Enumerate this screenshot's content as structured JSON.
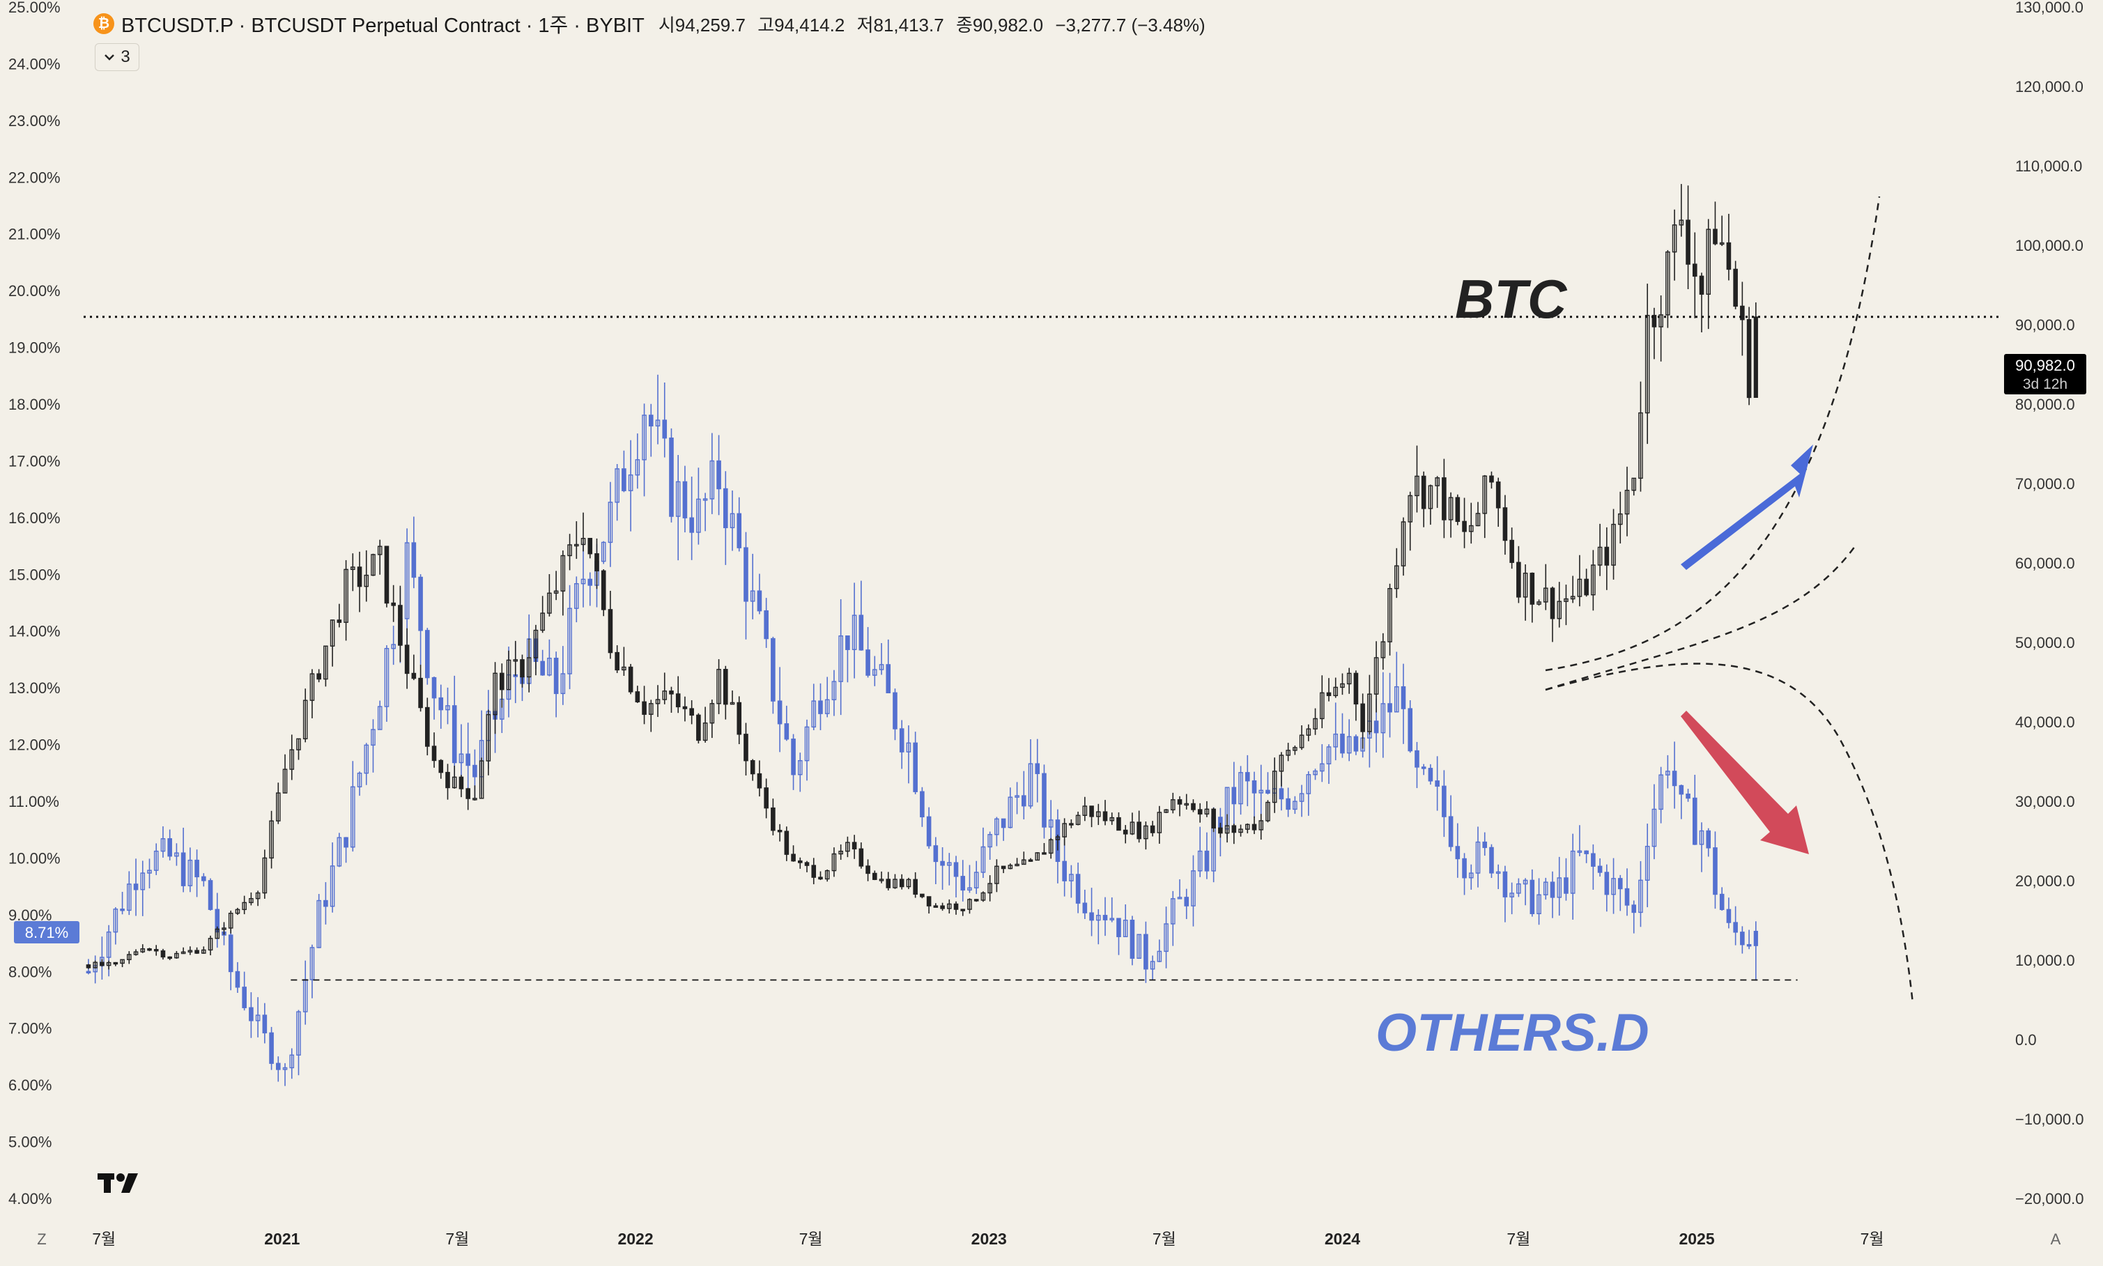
{
  "header": {
    "coin_icon": "bitcoin-icon",
    "symbol_title": "BTCUSDT.P · BTCUSDT Perpetual Contract · 1주 · BYBIT",
    "open": "시94,259.7",
    "high": "고94,414.2",
    "low": "저81,413.7",
    "close": "종90,982.0",
    "change": "−3,277.7 (−3.48%)"
  },
  "indicator_toggle": {
    "icon": "chevron-down-icon",
    "count": "3"
  },
  "current_price": {
    "value_label": "90,982.0",
    "countdown": "3d 12h"
  },
  "current_dominance": {
    "value_label": "8.71%"
  },
  "annotations": {
    "btc_label": "BTC",
    "others_label": "OTHERS.D"
  },
  "bottom_bar": {
    "left_button": "Z",
    "right_button": "A"
  },
  "logo": "tradingview-logo-icon",
  "colors": {
    "background": "#f3f0e8",
    "btc_candles": "#222222",
    "others_candles": "#5470d0",
    "up_arrow": "#4a6ad8",
    "down_arrow": "#d24a5a",
    "dominance_badge": "#5b7bd6",
    "price_badge": "#000000"
  },
  "chart_data": {
    "type": "candlestick",
    "left_axis": {
      "name": "OTHERS.D",
      "ylim": [
        4,
        25
      ],
      "ticks": [
        "25.00%",
        "24.00%",
        "23.00%",
        "22.00%",
        "21.00%",
        "20.00%",
        "19.00%",
        "18.00%",
        "17.00%",
        "16.00%",
        "15.00%",
        "14.00%",
        "13.00%",
        "12.00%",
        "11.00%",
        "10.00%",
        "9.00%",
        "8.00%",
        "7.00%",
        "6.00%",
        "5.00%",
        "4.00%"
      ]
    },
    "right_axis": {
      "name": "BTCUSDT.P",
      "ylim": [
        -20000,
        130000
      ],
      "ticks": [
        "130,000.0",
        "120,000.0",
        "110,000.0",
        "100,000.0",
        "90,000.0",
        "80,000.0",
        "70,000.0",
        "60,000.0",
        "50,000.0",
        "40,000.0",
        "30,000.0",
        "20,000.0",
        "10,000.0",
        "0.0",
        "−10,000.0",
        "−20,000.0"
      ]
    },
    "x_axis": {
      "range": [
        "2020-06-10",
        "2025-11-10"
      ],
      "ticks": [
        {
          "date": "2020-07-01",
          "label": "7월",
          "bold": false
        },
        {
          "date": "2021-01-01",
          "label": "2021",
          "bold": true
        },
        {
          "date": "2021-07-01",
          "label": "7월",
          "bold": false
        },
        {
          "date": "2022-01-01",
          "label": "2022",
          "bold": true
        },
        {
          "date": "2022-07-01",
          "label": "7월",
          "bold": false
        },
        {
          "date": "2023-01-01",
          "label": "2023",
          "bold": true
        },
        {
          "date": "2023-07-01",
          "label": "7월",
          "bold": false
        },
        {
          "date": "2024-01-01",
          "label": "2024",
          "bold": true
        },
        {
          "date": "2024-07-01",
          "label": "7월",
          "bold": false
        },
        {
          "date": "2025-01-01",
          "label": "2025",
          "bold": true
        },
        {
          "date": "2025-07-01",
          "label": "7월",
          "bold": false
        }
      ]
    },
    "series": [
      {
        "name": "BTCUSDT.P",
        "axis": "right",
        "points": [
          [
            "2020-06-15",
            9400
          ],
          [
            "2020-07-13",
            9300
          ],
          [
            "2020-08-10",
            11800
          ],
          [
            "2020-09-07",
            10500
          ],
          [
            "2020-10-12",
            11500
          ],
          [
            "2020-11-09",
            15500
          ],
          [
            "2020-12-07",
            19200
          ],
          [
            "2021-01-04",
            34000
          ],
          [
            "2021-02-08",
            47000
          ],
          [
            "2021-03-08",
            57000
          ],
          [
            "2021-04-12",
            60000
          ],
          [
            "2021-05-10",
            47000
          ],
          [
            "2021-06-07",
            35000
          ],
          [
            "2021-06-28",
            32000
          ],
          [
            "2021-07-19",
            31000
          ],
          [
            "2021-08-09",
            45000
          ],
          [
            "2021-09-06",
            47000
          ],
          [
            "2021-10-11",
            57000
          ],
          [
            "2021-11-08",
            65000
          ],
          [
            "2021-12-06",
            50000
          ],
          [
            "2022-01-10",
            42000
          ],
          [
            "2022-02-07",
            43000
          ],
          [
            "2022-03-07",
            39000
          ],
          [
            "2022-03-28",
            46000
          ],
          [
            "2022-05-09",
            31000
          ],
          [
            "2022-06-13",
            22000
          ],
          [
            "2022-07-11",
            21000
          ],
          [
            "2022-08-08",
            24000
          ],
          [
            "2022-09-12",
            20000
          ],
          [
            "2022-10-10",
            19500
          ],
          [
            "2022-11-07",
            16800
          ],
          [
            "2022-12-12",
            17000
          ],
          [
            "2023-01-09",
            21000
          ],
          [
            "2023-02-13",
            22000
          ],
          [
            "2023-03-13",
            26000
          ],
          [
            "2023-04-10",
            29000
          ],
          [
            "2023-05-08",
            27500
          ],
          [
            "2023-06-12",
            26000
          ],
          [
            "2023-07-10",
            30500
          ],
          [
            "2023-08-14",
            29000
          ],
          [
            "2023-08-21",
            26000
          ],
          [
            "2023-09-18",
            26500
          ],
          [
            "2023-10-09",
            27500
          ],
          [
            "2023-10-23",
            34000
          ],
          [
            "2023-11-13",
            37000
          ],
          [
            "2023-12-11",
            42000
          ],
          [
            "2024-01-08",
            46000
          ],
          [
            "2024-01-22",
            40000
          ],
          [
            "2024-02-12",
            51000
          ],
          [
            "2024-03-04",
            67000
          ],
          [
            "2024-03-11",
            70000
          ],
          [
            "2024-04-08",
            69000
          ],
          [
            "2024-05-06",
            63000
          ],
          [
            "2024-06-03",
            70000
          ],
          [
            "2024-07-01",
            58000
          ],
          [
            "2024-08-05",
            55000
          ],
          [
            "2024-09-02",
            56000
          ],
          [
            "2024-10-07",
            63000
          ],
          [
            "2024-10-28",
            72000
          ],
          [
            "2024-11-11",
            90000
          ],
          [
            "2024-12-02",
            97000
          ],
          [
            "2024-12-16",
            104000
          ],
          [
            "2025-01-06",
            94000
          ],
          [
            "2025-01-20",
            103000
          ],
          [
            "2025-02-03",
            97000
          ],
          [
            "2025-02-24",
            84000
          ],
          [
            "2025-03-03",
            90982
          ]
        ]
      },
      {
        "name": "OTHERS.D",
        "axis": "left",
        "points": [
          [
            "2020-06-15",
            8.0
          ],
          [
            "2020-07-13",
            9.0
          ],
          [
            "2020-08-10",
            10.0
          ],
          [
            "2020-09-07",
            10.0
          ],
          [
            "2020-10-12",
            9.5
          ],
          [
            "2020-11-09",
            8.0
          ],
          [
            "2020-12-07",
            7.0
          ],
          [
            "2021-01-04",
            6.2
          ],
          [
            "2021-02-08",
            9.0
          ],
          [
            "2021-03-08",
            10.5
          ],
          [
            "2021-04-12",
            13.0
          ],
          [
            "2021-05-10",
            15.3
          ],
          [
            "2021-06-07",
            13.0
          ],
          [
            "2021-06-28",
            12.0
          ],
          [
            "2021-07-19",
            11.5
          ],
          [
            "2021-08-09",
            12.5
          ],
          [
            "2021-09-06",
            13.5
          ],
          [
            "2021-10-11",
            13.0
          ],
          [
            "2021-11-08",
            15.0
          ],
          [
            "2021-12-06",
            16.0
          ],
          [
            "2022-01-10",
            18.0
          ],
          [
            "2022-02-07",
            16.5
          ],
          [
            "2022-03-07",
            16.0
          ],
          [
            "2022-03-28",
            16.7
          ],
          [
            "2022-05-09",
            14.0
          ],
          [
            "2022-06-13",
            11.5
          ],
          [
            "2022-07-11",
            13.0
          ],
          [
            "2022-08-08",
            14.0
          ],
          [
            "2022-09-12",
            13.0
          ],
          [
            "2022-10-10",
            12.0
          ],
          [
            "2022-11-07",
            10.0
          ],
          [
            "2022-12-12",
            9.5
          ],
          [
            "2023-01-09",
            10.5
          ],
          [
            "2023-02-13",
            11.5
          ],
          [
            "2023-03-13",
            10.0
          ],
          [
            "2023-04-10",
            9.3
          ],
          [
            "2023-05-08",
            9.0
          ],
          [
            "2023-06-12",
            8.2
          ],
          [
            "2023-07-10",
            9.0
          ],
          [
            "2023-08-14",
            10.0
          ],
          [
            "2023-08-21",
            10.5
          ],
          [
            "2023-09-18",
            11.3
          ],
          [
            "2023-10-09",
            11.0
          ],
          [
            "2023-10-23",
            11.0
          ],
          [
            "2023-11-13",
            11.2
          ],
          [
            "2023-12-11",
            12.0
          ],
          [
            "2024-01-08",
            11.8
          ],
          [
            "2024-01-22",
            12.0
          ],
          [
            "2024-02-12",
            12.5
          ],
          [
            "2024-03-04",
            13.0
          ],
          [
            "2024-03-11",
            11.5
          ],
          [
            "2024-04-08",
            11.0
          ],
          [
            "2024-05-06",
            10.0
          ],
          [
            "2024-06-03",
            10.0
          ],
          [
            "2024-07-01",
            9.3
          ],
          [
            "2024-08-05",
            9.3
          ],
          [
            "2024-09-02",
            10.0
          ],
          [
            "2024-10-07",
            9.5
          ],
          [
            "2024-10-28",
            9.0
          ],
          [
            "2024-11-11",
            10.5
          ],
          [
            "2024-12-02",
            11.8
          ],
          [
            "2024-12-16",
            10.8
          ],
          [
            "2025-01-06",
            10.5
          ],
          [
            "2025-01-20",
            9.5
          ],
          [
            "2025-02-03",
            8.7
          ],
          [
            "2025-02-24",
            8.6
          ],
          [
            "2025-03-03",
            8.71
          ]
        ]
      }
    ],
    "reference_lines": [
      {
        "name": "btc-current-price-line",
        "axis": "right",
        "value": 90982,
        "style": "dotted",
        "start": "2020-06-10",
        "end": "2025-11-10"
      },
      {
        "name": "others-support-line",
        "axis": "left",
        "value": 7.85,
        "style": "dashed",
        "start": "2021-01-10",
        "end": "2025-04-15"
      }
    ]
  }
}
